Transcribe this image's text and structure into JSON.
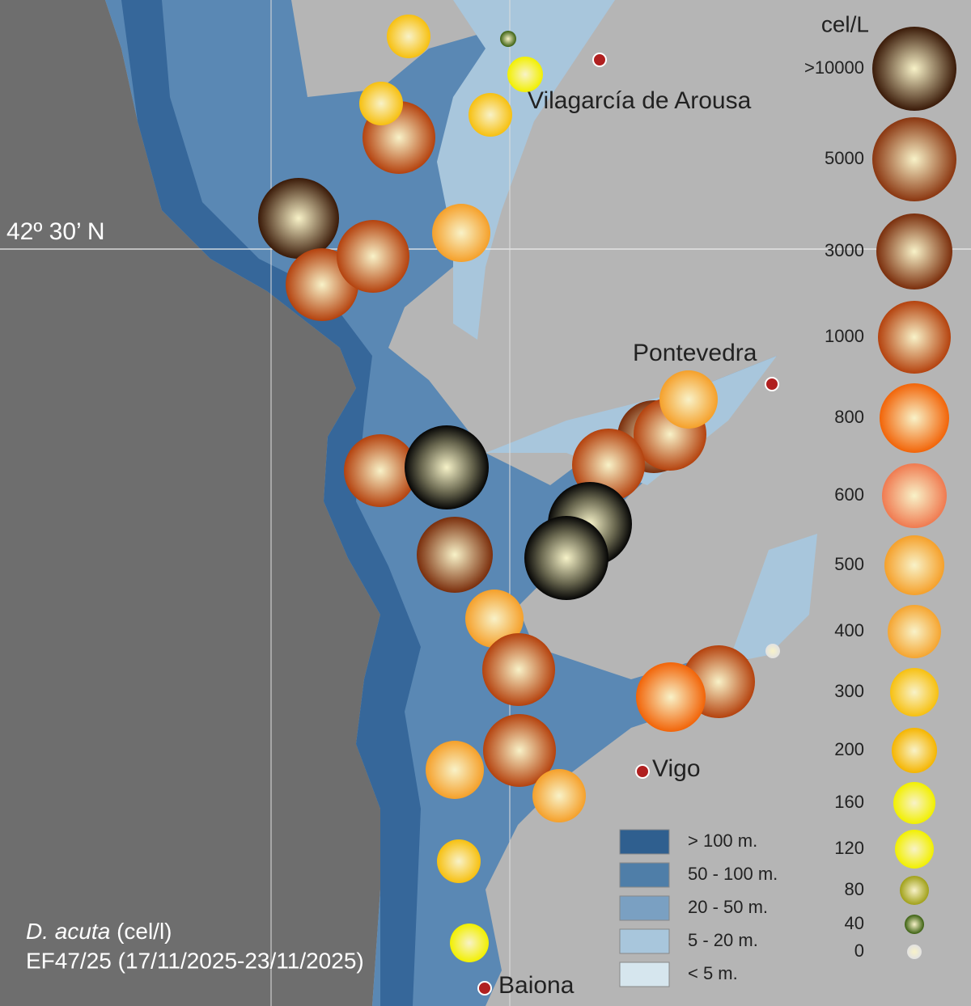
{
  "title": {
    "species": "D. acuta",
    "unit": "(cel/l)",
    "period": "EF47/25 (17/11/2025-23/11/2025)"
  },
  "latitude_label": "42º 30’ N",
  "places": [
    "Vilagarcía de Arousa",
    "Pontevedra",
    "Vigo",
    "Baiona"
  ],
  "concentration_legend": {
    "title": "cel/L",
    "classes": [
      ">10000",
      5000,
      3000,
      1000,
      800,
      600,
      500,
      400,
      300,
      200,
      160,
      120,
      80,
      40,
      0
    ],
    "colors": [
      "#3a1a08",
      "#8a3610",
      "#7a2e0c",
      "#b4420e",
      "#f26408",
      "#f07a50",
      "#f5a02a",
      "#f5a530",
      "#f7c010",
      "#f5b500",
      "#f2f000",
      "#f2f000",
      "#a0a018",
      "#3a6010",
      "#e2e2e2"
    ]
  },
  "depth_legend": {
    "labels": [
      "> 100 m.",
      "50 - 100 m.",
      "20 - 50 m.",
      "5 - 20 m.",
      "< 5 m."
    ],
    "colors": [
      "#2f5f8f",
      "#4f7ea8",
      "#7aa0c2",
      "#a8c6dc",
      "#d6e6ee"
    ]
  }
}
